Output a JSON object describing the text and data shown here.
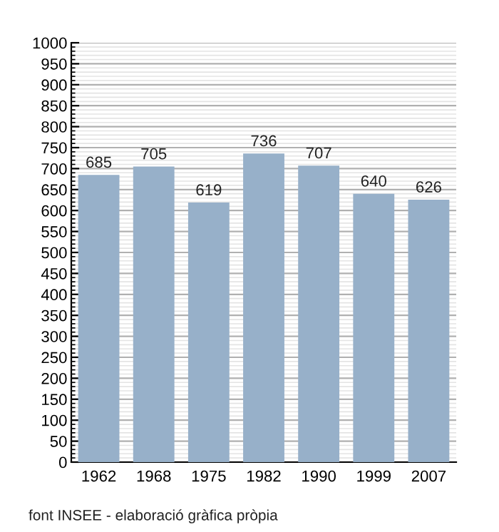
{
  "chart_data": {
    "type": "bar",
    "categories": [
      "1962",
      "1968",
      "1975",
      "1982",
      "1990",
      "1999",
      "2007"
    ],
    "values": [
      685,
      705,
      619,
      736,
      707,
      640,
      626
    ],
    "color": "#97b0c9",
    "ylim": [
      0,
      1000
    ],
    "yticks": [
      0,
      50,
      100,
      150,
      200,
      250,
      300,
      350,
      400,
      450,
      500,
      550,
      600,
      650,
      700,
      750,
      800,
      850,
      900,
      950,
      1000
    ],
    "grid": "y",
    "data_labels": true,
    "annotations": [
      "font INSEE - elaboració gràfica pròpia"
    ]
  }
}
